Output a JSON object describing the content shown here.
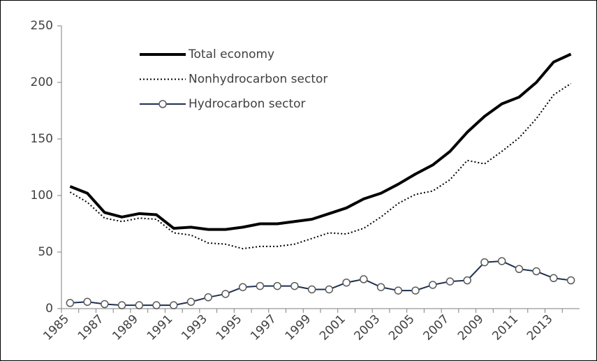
{
  "chart_data": {
    "type": "line",
    "categories": [
      "1985",
      null,
      "1987",
      null,
      "1989",
      null,
      "1991",
      null,
      "1993",
      null,
      "1995",
      null,
      "1997",
      null,
      "1999",
      null,
      "2001",
      null,
      "2003",
      null,
      "2005",
      null,
      "2007",
      null,
      "2009",
      null,
      "2011",
      null,
      "2013",
      null
    ],
    "series": [
      {
        "name": "Total economy",
        "color": "#000000",
        "style": "solid",
        "width": 4,
        "marker": "none",
        "values": [
          108,
          102,
          85,
          81,
          84,
          83,
          71,
          72,
          70,
          70,
          72,
          75,
          75,
          77,
          79,
          84,
          89,
          97,
          102,
          110,
          119,
          127,
          139,
          156,
          170,
          181,
          187,
          200,
          218,
          225
        ]
      },
      {
        "name": "Nonhydrocarbon sector",
        "color": "#000000",
        "style": "dotted",
        "width": 2,
        "marker": "none",
        "values": [
          103,
          94,
          80,
          77,
          80,
          79,
          67,
          65,
          58,
          57,
          53,
          55,
          55,
          57,
          62,
          67,
          66,
          71,
          81,
          93,
          101,
          104,
          114,
          131,
          128,
          139,
          151,
          168,
          189,
          199
        ]
      },
      {
        "name": "Hydrocarbon sector",
        "color": "#1f3050",
        "style": "solid",
        "width": 2,
        "marker": "circle",
        "values": [
          5,
          6,
          4,
          3,
          3,
          3,
          3,
          6,
          10,
          13,
          19,
          20,
          20,
          20,
          17,
          17,
          23,
          26,
          19,
          16,
          16,
          21,
          24,
          25,
          41,
          42,
          35,
          33,
          27,
          25
        ]
      }
    ],
    "ylim": [
      0,
      250
    ],
    "yticks": [
      0,
      50,
      100,
      150,
      200,
      250
    ],
    "grid": false,
    "legend": "upper-left"
  }
}
